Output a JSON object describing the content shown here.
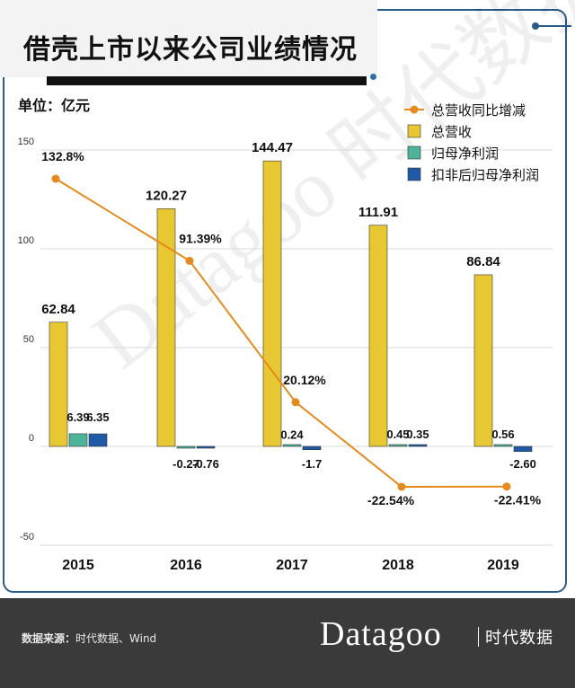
{
  "title": "借壳上市以来公司业绩情况",
  "unit_label": "单位：亿元",
  "watermark": "Datagoo 时代数据",
  "footer": {
    "source_label": "数据来源：",
    "source_text": "时代数据、Wind",
    "brand": "Datagoo",
    "brand_cn": "时代数据"
  },
  "colors": {
    "revenue": "#e8c832",
    "net_profit": "#4db49a",
    "deducted_profit": "#1f5aa6",
    "growth": "#e58a1f",
    "frame": "#2a5b8a"
  },
  "chart_data": {
    "type": "bar",
    "categories": [
      "2015",
      "2016",
      "2017",
      "2018",
      "2019"
    ],
    "ylim": [
      -50,
      150
    ],
    "yticks": [
      "150",
      "100",
      "50",
      "0",
      "-50"
    ],
    "ytick_values": [
      150,
      100,
      50,
      0,
      -50
    ],
    "legend_position": "top-right",
    "series": [
      {
        "name": "总营收",
        "values": [
          62.84,
          120.27,
          144.47,
          111.91,
          86.84
        ],
        "labels": [
          "62.84",
          "120.27",
          "144.47",
          "111.91",
          "86.84"
        ]
      },
      {
        "name": "归母净利润",
        "values": [
          6.39,
          -0.27,
          0.24,
          0.45,
          0.56
        ],
        "labels": [
          "6.39",
          "-0.27",
          "0.24",
          "0.45",
          "0.56"
        ]
      },
      {
        "name": "扣非后归母净利润",
        "values": [
          6.35,
          -0.76,
          -1.7,
          0.35,
          -2.6
        ],
        "labels": [
          "6.35",
          "-0.76",
          "-1.7",
          "0.35",
          "-2.60"
        ]
      }
    ],
    "line_series": {
      "name": "总营收同比增减",
      "values": [
        132.8,
        91.39,
        20.12,
        -22.54,
        -22.41
      ],
      "labels": [
        "132.8%",
        "91.39%",
        "20.12%",
        "-22.54%",
        "-22.41%"
      ]
    }
  }
}
